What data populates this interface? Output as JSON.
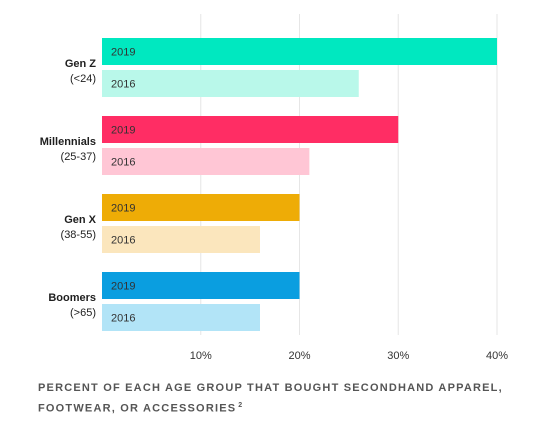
{
  "chart_data": {
    "type": "bar",
    "orientation": "horizontal",
    "categories": [
      {
        "name": "Gen Z",
        "sub": "(<24)"
      },
      {
        "name": "Millennials",
        "sub": "(25-37)"
      },
      {
        "name": "Gen X",
        "sub": "(38-55)"
      },
      {
        "name": "Boomers",
        "sub": "(>65)"
      }
    ],
    "series": [
      {
        "name": "2019",
        "values": [
          40,
          30,
          20,
          20
        ],
        "colors": [
          "#00e8c0",
          "#ff2d64",
          "#eeac06",
          "#0a9ee0"
        ]
      },
      {
        "name": "2016",
        "values": [
          26,
          21,
          16,
          16
        ],
        "colors": [
          "#b9f8ea",
          "#ffc6d5",
          "#fbe6bd",
          "#b2e4f7"
        ]
      }
    ],
    "xlim": [
      0,
      40
    ],
    "xticks": [
      10,
      20,
      30,
      40
    ],
    "xtick_labels": [
      "10%",
      "20%",
      "30%",
      "40%"
    ],
    "grid": true,
    "caption": "PERCENT OF EACH AGE GROUP THAT BOUGHT SECONDHAND APPAREL, FOOTWEAR, OR ACCESSORIES",
    "caption_footnote": "2"
  }
}
